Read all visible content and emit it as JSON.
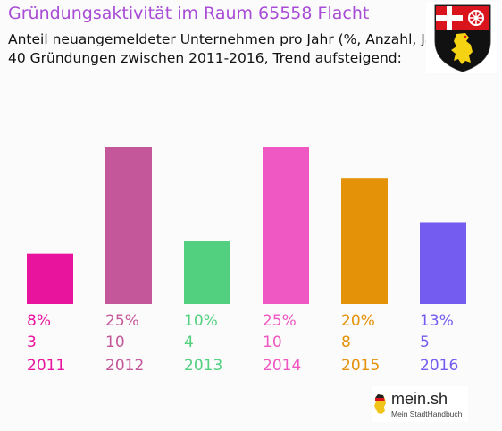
{
  "header": {
    "title": "Gründungsaktivität im Raum 65558 Flacht",
    "subtitle_line1": "Anteil neuangemeldeter Unternehmen pro Jahr (%, Anzahl, Jahr)",
    "subtitle_line2": "40 Gründungen zwischen 2011-2016, Trend aufsteigend:"
  },
  "logo": {
    "main": "mein.sh",
    "sub": "Mein StadtHandbuch"
  },
  "chart_data": {
    "type": "bar",
    "categories": [
      "2011",
      "2012",
      "2013",
      "2014",
      "2015",
      "2016"
    ],
    "percent_labels": [
      "8%",
      "25%",
      "10%",
      "25%",
      "20%",
      "13%"
    ],
    "percent": [
      8,
      25,
      10,
      25,
      20,
      13
    ],
    "counts": [
      3,
      10,
      4,
      10,
      8,
      5
    ],
    "colors": [
      "#e8149e",
      "#c45799",
      "#52cf7f",
      "#ef57c2",
      "#e49208",
      "#745cf1"
    ],
    "ylim": [
      0,
      25
    ]
  }
}
